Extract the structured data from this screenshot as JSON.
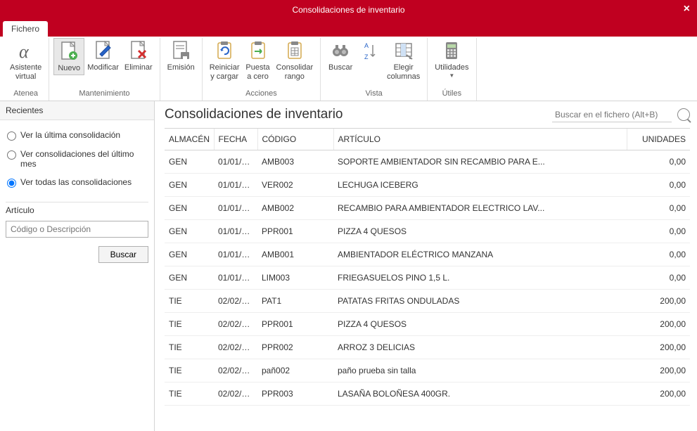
{
  "colors": {
    "brand": "#c00020",
    "border": "#d4d4d4",
    "text": "#333333"
  },
  "titlebar": {
    "title": "Consolidaciones de inventario"
  },
  "tabs": {
    "fichero": "Fichero"
  },
  "ribbon": {
    "atenea": {
      "label": "Atenea",
      "btn": "Asistente\nvirtual"
    },
    "mantenimiento": {
      "label": "Mantenimiento",
      "nuevo": "Nuevo",
      "modificar": "Modificar",
      "eliminar": "Eliminar"
    },
    "emision": {
      "label": "",
      "emision": "Emisión"
    },
    "acciones": {
      "label": "Acciones",
      "reiniciar": "Reiniciar\ny cargar",
      "cero": "Puesta\na cero",
      "consolidar": "Consolidar\nrango"
    },
    "vista": {
      "label": "Vista",
      "buscar": "Buscar",
      "az": "",
      "elegir": "Elegir\ncolumnas"
    },
    "utiles": {
      "label": "Útiles",
      "utilidades": "Utilidades"
    }
  },
  "sidebar": {
    "recientes": "Recientes",
    "r1": "Ver la última consolidación",
    "r2": "Ver consolidaciones del último mes",
    "r3": "Ver todas las consolidaciones",
    "articulo": "Artículo",
    "placeholder": "Código o Descripción",
    "buscar": "Buscar"
  },
  "main": {
    "title": "Consolidaciones de inventario",
    "search_placeholder": "Buscar en el fichero (Alt+B)"
  },
  "table": {
    "columns": {
      "almacen": "ALMACÉN",
      "fecha": "FECHA",
      "codigo": "CÓDIGO",
      "articulo": "ARTÍCULO",
      "unidades": "UNIDADES"
    },
    "rows": [
      {
        "almacen": "GEN",
        "fecha": "01/01/2...",
        "codigo": "AMB003",
        "articulo": "SOPORTE AMBIENTADOR SIN RECAMBIO PARA E...",
        "unidades": "0,00"
      },
      {
        "almacen": "GEN",
        "fecha": "01/01/2...",
        "codigo": "VER002",
        "articulo": "LECHUGA ICEBERG",
        "unidades": "0,00"
      },
      {
        "almacen": "GEN",
        "fecha": "01/01/2...",
        "codigo": "AMB002",
        "articulo": "RECAMBIO PARA AMBIENTADOR ELECTRICO LAV...",
        "unidades": "0,00"
      },
      {
        "almacen": "GEN",
        "fecha": "01/01/2...",
        "codigo": "PPR001",
        "articulo": "PIZZA 4 QUESOS",
        "unidades": "0,00"
      },
      {
        "almacen": "GEN",
        "fecha": "01/01/2...",
        "codigo": "AMB001",
        "articulo": "AMBIENTADOR ELÉCTRICO MANZANA",
        "unidades": "0,00"
      },
      {
        "almacen": "GEN",
        "fecha": "01/01/2...",
        "codigo": "LIM003",
        "articulo": "FRIEGASUELOS PINO 1,5 L.",
        "unidades": "0,00"
      },
      {
        "almacen": "TIE",
        "fecha": "02/02/2...",
        "codigo": "PAT1",
        "articulo": "PATATAS FRITAS ONDULADAS",
        "unidades": "200,00"
      },
      {
        "almacen": "TIE",
        "fecha": "02/02/2...",
        "codigo": "PPR001",
        "articulo": "PIZZA 4 QUESOS",
        "unidades": "200,00"
      },
      {
        "almacen": "TIE",
        "fecha": "02/02/2...",
        "codigo": "PPR002",
        "articulo": "ARROZ 3 DELICIAS",
        "unidades": "200,00"
      },
      {
        "almacen": "TIE",
        "fecha": "02/02/2...",
        "codigo": "pañ002",
        "articulo": "paño prueba sin talla",
        "unidades": "200,00"
      },
      {
        "almacen": "TIE",
        "fecha": "02/02/2...",
        "codigo": "PPR003",
        "articulo": "LASAÑA BOLOÑESA 400GR.",
        "unidades": "200,00"
      }
    ]
  }
}
